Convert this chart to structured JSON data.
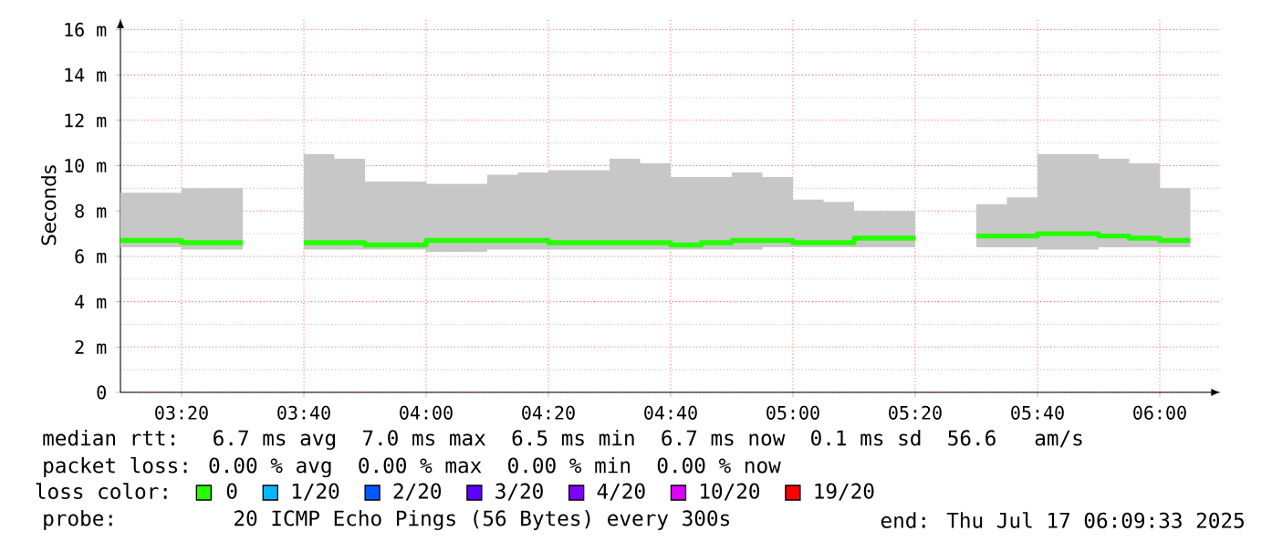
{
  "chart_data": {
    "type": "step",
    "ylabel": "Seconds",
    "x": [
      3.1667,
      3.25,
      3.3333,
      3.4167,
      3.5,
      3.5833,
      3.6667,
      3.75,
      3.8333,
      3.9167,
      4,
      4.0833,
      4.1667,
      4.25,
      4.3333,
      4.4167,
      4.5,
      4.5833,
      4.6667,
      4.75,
      4.8333,
      4.9167,
      5,
      5.0833,
      5.1667,
      5.25,
      5.3333,
      5.4167,
      5.5,
      5.5833,
      5.6667,
      5.75,
      5.8333,
      5.9167,
      6,
      6.0833
    ],
    "series": [
      {
        "name": "0",
        "color": "#26ff00",
        "values": [
          6.7,
          6.7,
          6.6,
          6.6,
          6.6,
          null,
          6.6,
          6.6,
          6.5,
          6.5,
          6.7,
          6.7,
          6.7,
          6.7,
          6.6,
          6.6,
          6.6,
          6.6,
          6.5,
          6.6,
          6.7,
          6.7,
          6.6,
          6.6,
          6.8,
          6.8,
          6.8,
          null,
          6.9,
          6.9,
          7.0,
          7.0,
          6.9,
          6.8,
          6.7,
          6.7
        ],
        "upper": [
          8.8,
          8.8,
          9.0,
          9.0,
          9.0,
          null,
          10.5,
          10.3,
          9.3,
          9.3,
          9.2,
          9.2,
          9.6,
          9.7,
          9.8,
          9.8,
          10.3,
          10.1,
          9.5,
          9.5,
          9.7,
          9.5,
          8.5,
          8.4,
          8.0,
          8.0,
          8.0,
          null,
          8.3,
          8.6,
          10.5,
          10.5,
          10.3,
          10.1,
          9.0,
          9.0
        ],
        "lower": [
          6.4,
          6.4,
          6.3,
          6.3,
          6.3,
          null,
          6.3,
          6.3,
          6.3,
          6.3,
          6.2,
          6.2,
          6.3,
          6.3,
          6.3,
          6.3,
          6.3,
          6.3,
          6.3,
          6.3,
          6.3,
          6.4,
          6.4,
          6.4,
          6.4,
          6.4,
          6.4,
          null,
          6.4,
          6.4,
          6.3,
          6.3,
          6.4,
          6.4,
          6.4,
          6.4
        ]
      },
      {
        "name": "1/20",
        "color": "#00b8ff",
        "values": [
          null,
          null,
          null,
          null,
          null,
          null,
          null,
          null,
          null,
          null,
          null,
          null,
          null,
          null,
          null,
          null,
          null,
          null,
          null,
          null,
          null,
          null,
          null,
          null,
          null,
          null,
          null,
          null,
          null,
          null,
          null,
          null,
          null,
          null,
          null,
          null
        ]
      },
      {
        "name": "2/20",
        "color": "#0059ff",
        "values": [
          null,
          null,
          null,
          null,
          null,
          null,
          null,
          null,
          null,
          null,
          null,
          null,
          null,
          null,
          null,
          null,
          null,
          null,
          null,
          null,
          null,
          null,
          null,
          null,
          null,
          null,
          null,
          null,
          null,
          null,
          null,
          null,
          null,
          null,
          null,
          null
        ]
      },
      {
        "name": "3/20",
        "color": "#5e00ff",
        "values": [
          null,
          null,
          null,
          null,
          null,
          null,
          null,
          null,
          null,
          null,
          null,
          null,
          null,
          null,
          null,
          null,
          null,
          null,
          null,
          null,
          null,
          null,
          null,
          null,
          null,
          null,
          null,
          null,
          null,
          null,
          null,
          null,
          null,
          null,
          null,
          null
        ]
      },
      {
        "name": "4/20",
        "color": "#7e00ff",
        "values": [
          null,
          null,
          null,
          null,
          null,
          null,
          null,
          null,
          null,
          null,
          null,
          null,
          null,
          null,
          null,
          null,
          null,
          null,
          null,
          null,
          null,
          null,
          null,
          null,
          null,
          null,
          null,
          null,
          null,
          null,
          null,
          null,
          null,
          null,
          null,
          null
        ]
      },
      {
        "name": "10/20",
        "color": "#dd00ff",
        "values": [
          null,
          null,
          null,
          null,
          null,
          null,
          null,
          null,
          null,
          null,
          null,
          null,
          null,
          null,
          null,
          null,
          null,
          null,
          null,
          null,
          null,
          null,
          null,
          null,
          null,
          null,
          null,
          null,
          null,
          null,
          null,
          null,
          null,
          null,
          null,
          null
        ]
      },
      {
        "name": "19/20",
        "color": "#ff0000",
        "values": [
          null,
          null,
          null,
          null,
          null,
          null,
          null,
          null,
          null,
          null,
          null,
          null,
          null,
          null,
          null,
          null,
          null,
          null,
          null,
          null,
          null,
          null,
          null,
          null,
          null,
          null,
          null,
          null,
          null,
          null,
          null,
          null,
          null,
          null,
          null,
          null
        ]
      }
    ],
    "xlim": [
      3.1667,
      6.1667
    ],
    "xticks": [
      {
        "value": 3.3333,
        "label": "03:20"
      },
      {
        "value": 3.6667,
        "label": "03:40"
      },
      {
        "value": 4,
        "label": "04:00"
      },
      {
        "value": 4.3333,
        "label": "04:20"
      },
      {
        "value": 4.6667,
        "label": "04:40"
      },
      {
        "value": 5,
        "label": "05:00"
      },
      {
        "value": 5.3333,
        "label": "05:20"
      },
      {
        "value": 5.6667,
        "label": "05:40"
      },
      {
        "value": 6,
        "label": "06:00"
      }
    ],
    "ylim": [
      0,
      16.5
    ],
    "yticks": [
      0,
      {
        "value": 2,
        "label": "2 m"
      },
      {
        "value": 4,
        "label": "4 m"
      },
      {
        "value": 6,
        "label": "6 m"
      },
      {
        "value": 8,
        "label": "8 m"
      },
      {
        "value": 10,
        "label": "10 m"
      },
      {
        "value": 12,
        "label": "12 m"
      },
      {
        "value": 14,
        "label": "14 m"
      },
      {
        "value": 16,
        "label": "16 m"
      }
    ],
    "grid": true,
    "legend": "bottom",
    "legend_title": "loss color:",
    "annotations": [
      "median rtt:  6.7 ms avg  7.0 ms max  6.5 ms min  6.7 ms now  0.1 ms sd  56.6   am/s",
      "packet loss: 0.00 % avg  0.00 % max  0.00 % min  0.00 % now",
      "probe:       20 ICMP Echo Pings (56 Bytes) every 300s",
      "end: Thu Jul 17 06:09:33 2025"
    ]
  }
}
